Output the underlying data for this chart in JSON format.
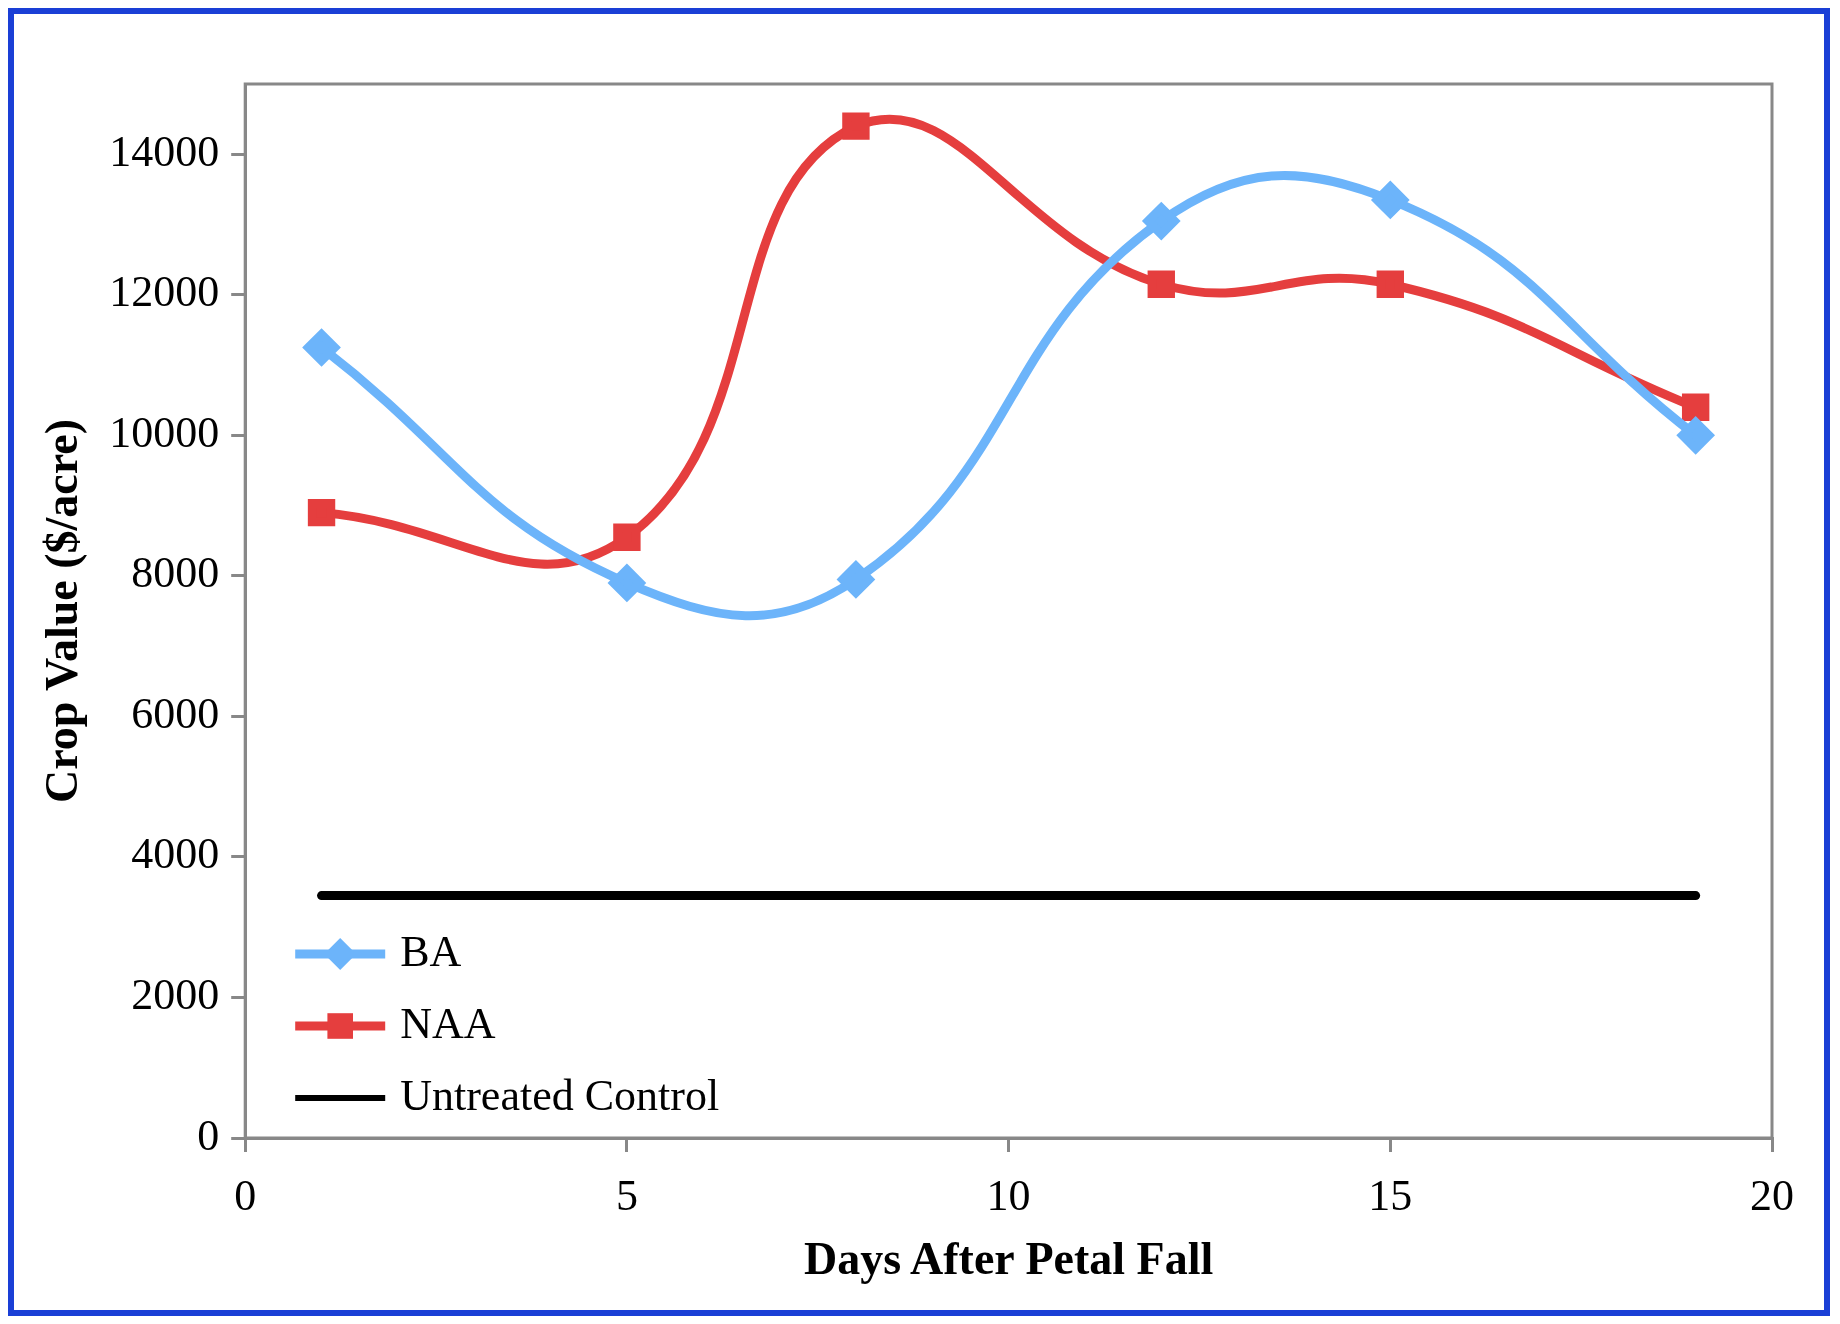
{
  "chart_data": {
    "type": "line",
    "xlabel": "Days After Petal Fall",
    "ylabel": "Crop Value ($/acre)",
    "xlim": [
      0,
      20
    ],
    "xticks": [
      0,
      5,
      10,
      15,
      20
    ],
    "ylim": [
      0,
      15000
    ],
    "yticks": [
      0,
      2000,
      4000,
      6000,
      8000,
      10000,
      12000,
      14000
    ],
    "grid": false,
    "legend": "bottom left",
    "series": [
      {
        "name": "BA",
        "color": "#6cb4fa",
        "marker": "diamond",
        "x": [
          1,
          5,
          8,
          12,
          15,
          19
        ],
        "values": [
          11250,
          7900,
          7950,
          13050,
          13350,
          10000
        ]
      },
      {
        "name": "NAA",
        "color": "#e53e3e",
        "marker": "square",
        "x": [
          1,
          5,
          8,
          12,
          15,
          19
        ],
        "values": [
          8900,
          8550,
          14400,
          12150,
          12150,
          10400
        ]
      },
      {
        "name": "Untreated Control",
        "color": "#000000",
        "marker": "none",
        "x": [
          1,
          19
        ],
        "values": [
          3450,
          3450
        ]
      }
    ]
  }
}
